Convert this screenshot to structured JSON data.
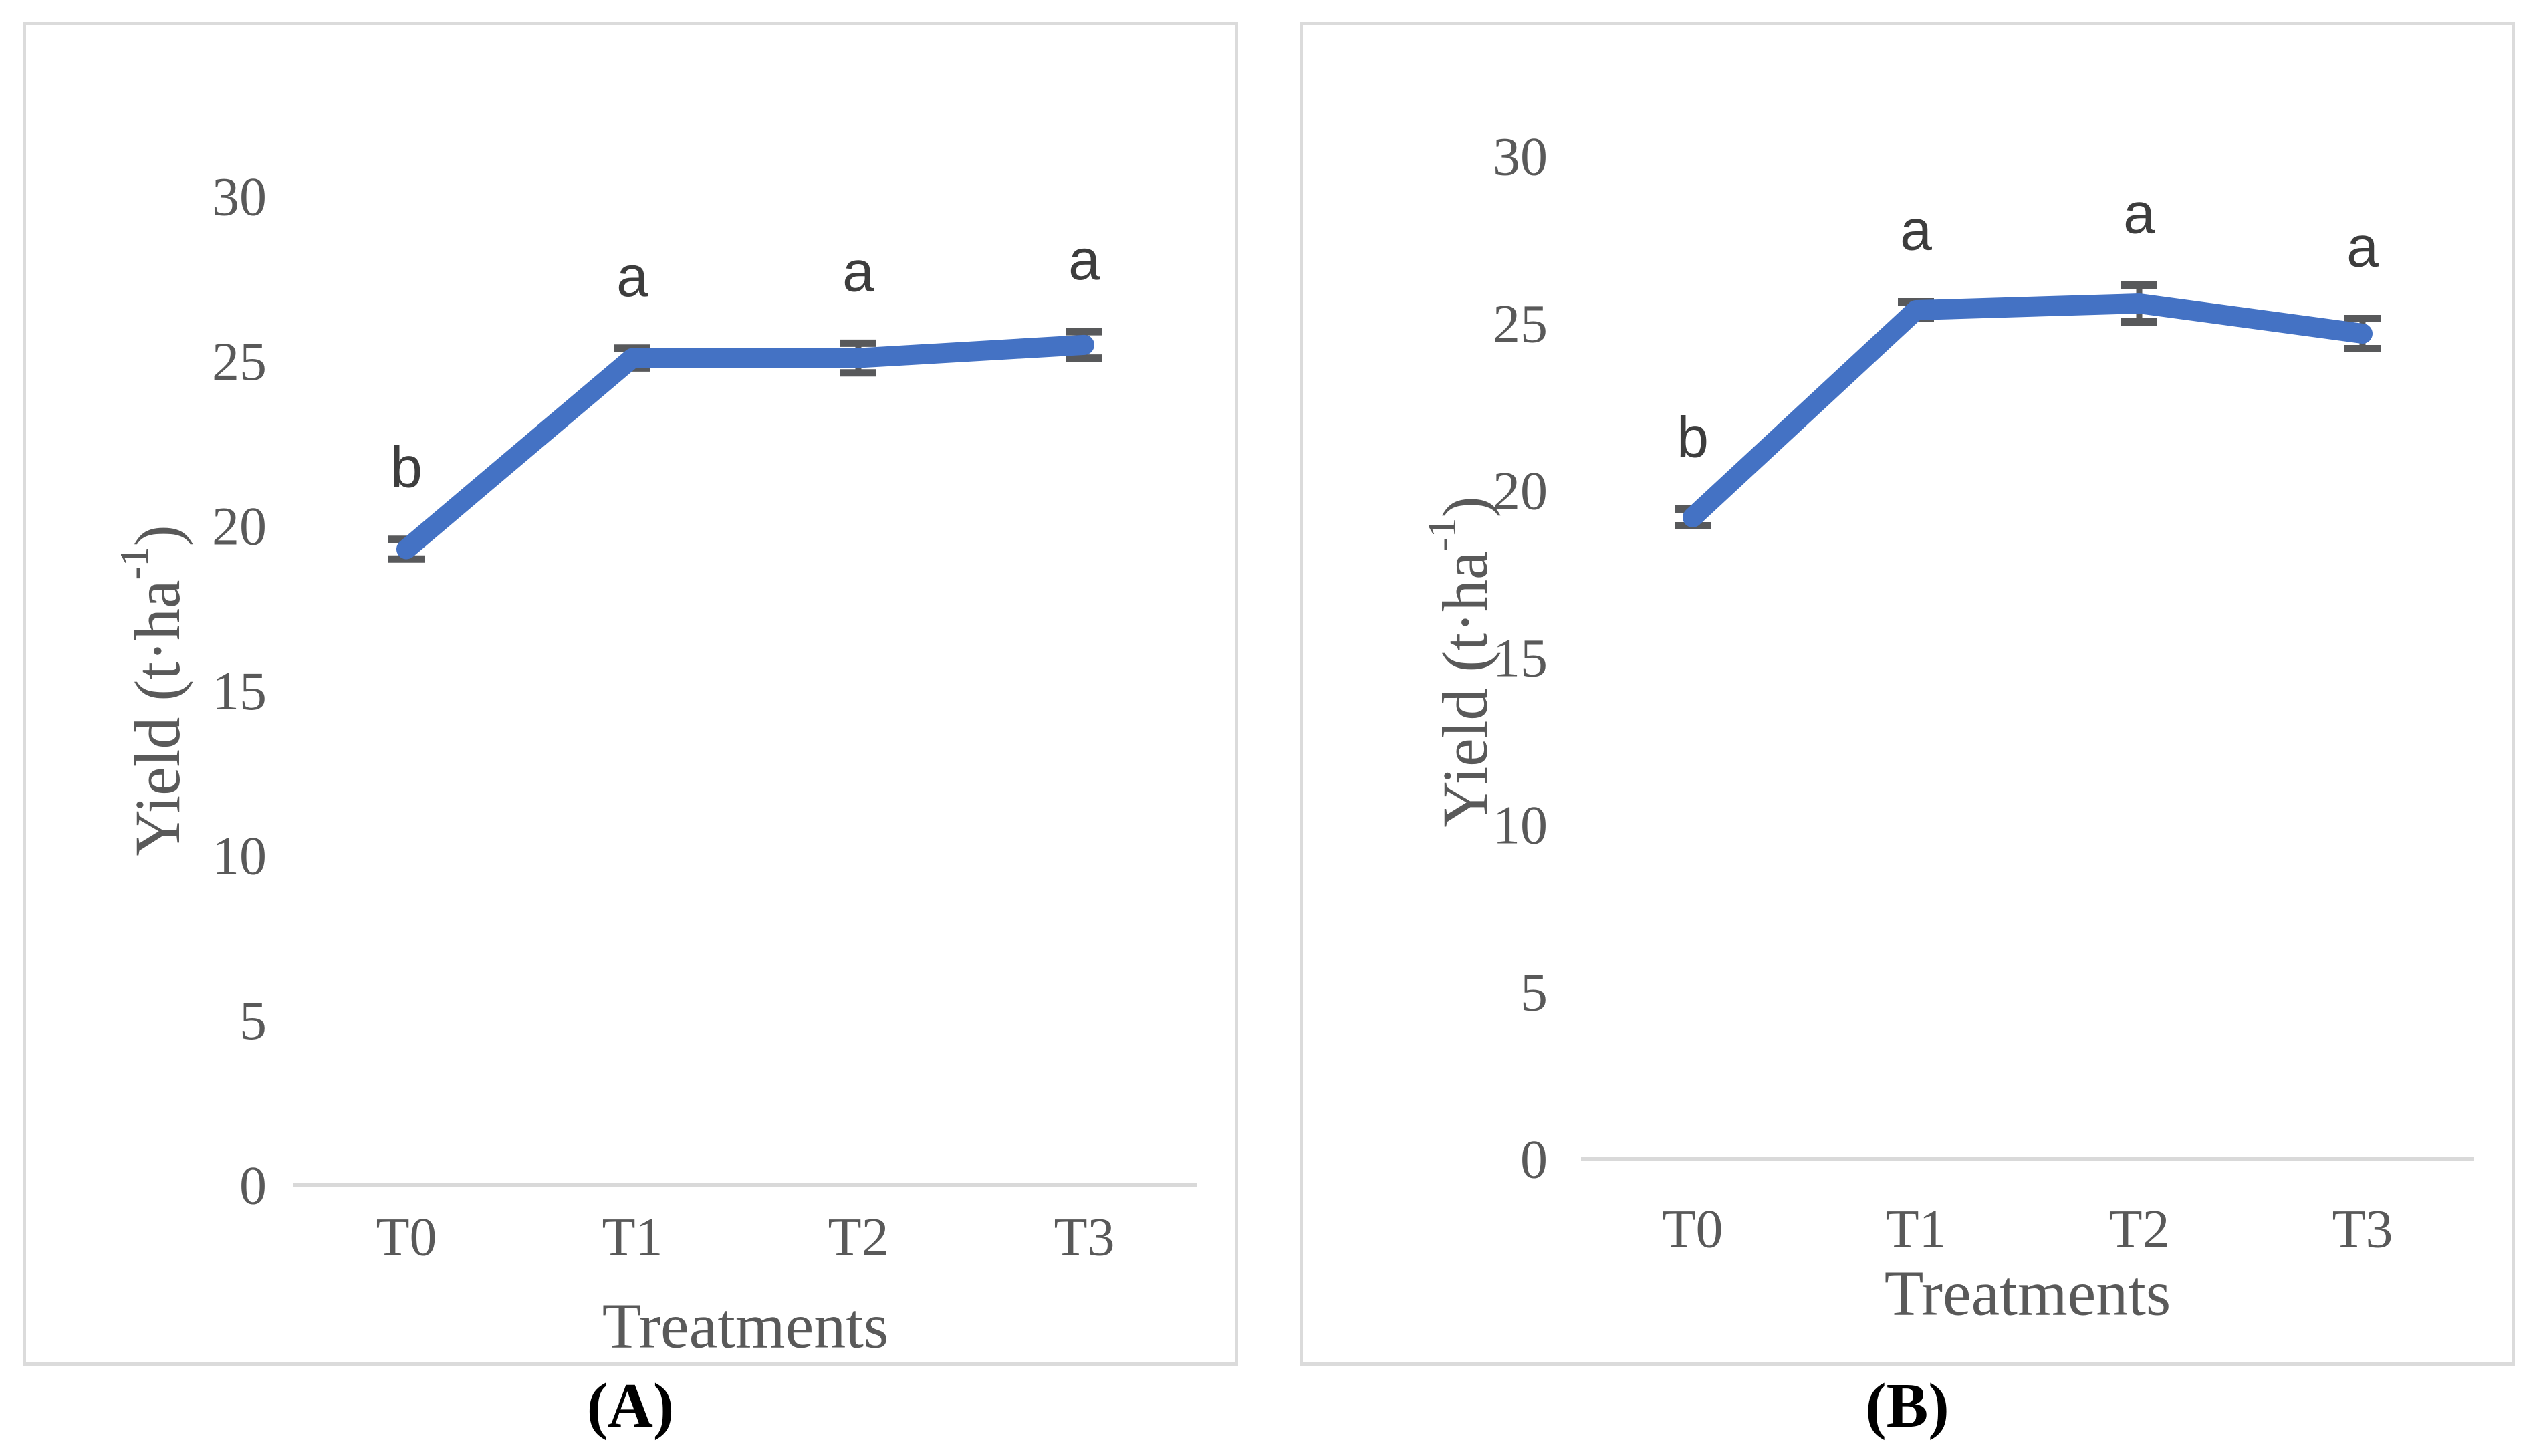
{
  "figure": {
    "description": "Two-panel line chart figure showing crop yield response to treatments",
    "panel_count": 2
  },
  "colors": {
    "line": "#4472C4",
    "error_bar": "#58595B",
    "axis_line": "#D9D9D9",
    "tick_text": "#595959",
    "sig_letter_text": "#3d3d3d",
    "panel_border": "#DBDBDB",
    "caption_text": "#000000"
  },
  "chart_data": [
    {
      "id": "A",
      "type": "line",
      "caption": "(A)",
      "title": "",
      "xlabel": "Treatments",
      "ylabel": "Yield (t·ha⁻¹)",
      "ylabel_parts": {
        "prefix": "Yield (t·ha",
        "sup": "-1",
        "suffix": ")"
      },
      "categories": [
        "T0",
        "T1",
        "T2",
        "T3"
      ],
      "values": [
        19.3,
        25.1,
        25.1,
        25.5
      ],
      "errors": [
        0.3,
        0.3,
        0.45,
        0.4
      ],
      "sig_letters": [
        "b",
        "a",
        "a",
        "a"
      ],
      "yticks": [
        0,
        5,
        10,
        15,
        20,
        25,
        30
      ],
      "ylim": [
        0,
        30
      ],
      "grid": false,
      "legend": false
    },
    {
      "id": "B",
      "type": "line",
      "caption": "(B)",
      "title": "",
      "xlabel": "Treatments",
      "ylabel": "Yield (t·ha⁻¹)",
      "ylabel_parts": {
        "prefix": "Yield (t·ha",
        "sup": "-1",
        "suffix": ")"
      },
      "categories": [
        "T0",
        "T1",
        "T2",
        "T3"
      ],
      "values": [
        19.2,
        25.4,
        25.6,
        24.7
      ],
      "errors": [
        0.25,
        0.25,
        0.55,
        0.45
      ],
      "sig_letters": [
        "b",
        "a",
        "a",
        "a"
      ],
      "yticks": [
        0,
        5,
        10,
        15,
        20,
        25,
        30
      ],
      "ylim": [
        0,
        30
      ],
      "grid": false,
      "legend": false
    }
  ]
}
